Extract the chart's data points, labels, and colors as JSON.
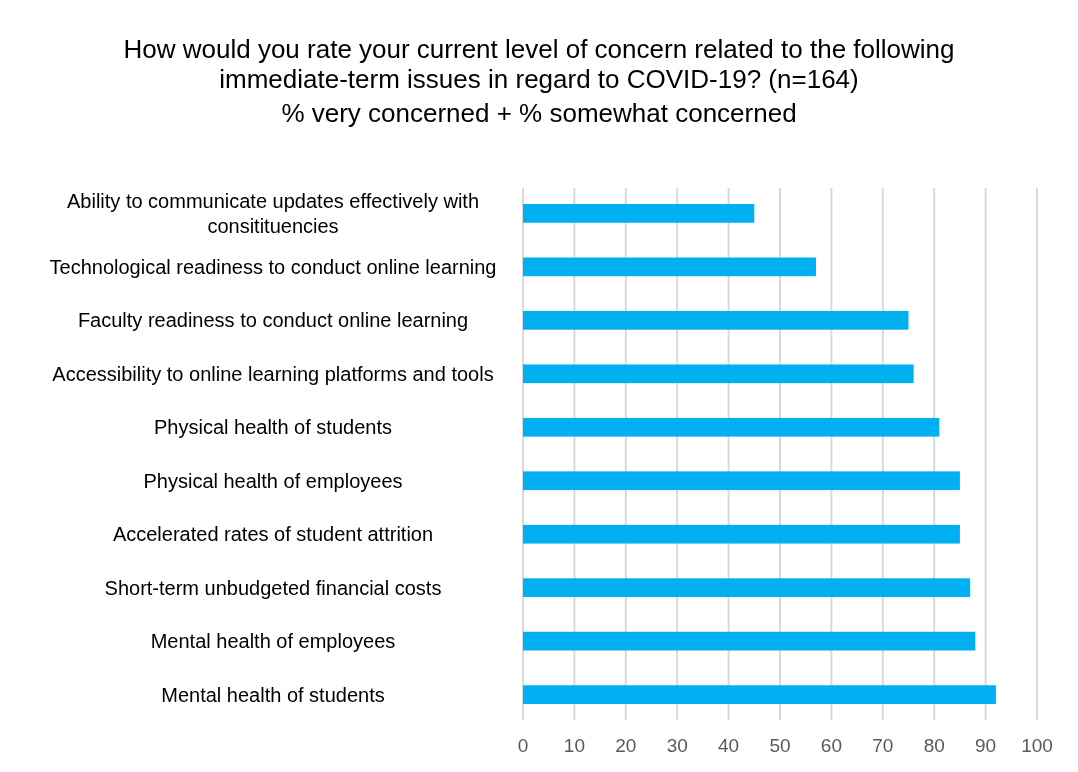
{
  "chart_data": {
    "type": "bar",
    "orientation": "horizontal",
    "title": "How would you rate your current level of concern related to the following immediate-term issues in regard to COVID-19? (n=164)",
    "subtitle": "% very concerned + % somewhat concerned",
    "categories": [
      "Ability to communicate updates effectively with consitituencies",
      "Technological readiness to conduct online learning",
      "Faculty readiness to conduct online learning",
      "Accessibility to online learning platforms and tools",
      "Physical health of students",
      "Physical health of employees",
      "Accelerated rates of student attrition",
      "Short-term unbudgeted financial costs",
      "Mental health of employees",
      "Mental health of students"
    ],
    "values": [
      45,
      57,
      75,
      76,
      81,
      85,
      85,
      87,
      88,
      92
    ],
    "color": "#00b0f0",
    "xlim": [
      0,
      100
    ],
    "xticks": [
      0,
      10,
      20,
      30,
      40,
      50,
      60,
      70,
      80,
      90,
      100
    ],
    "grid": "x"
  }
}
